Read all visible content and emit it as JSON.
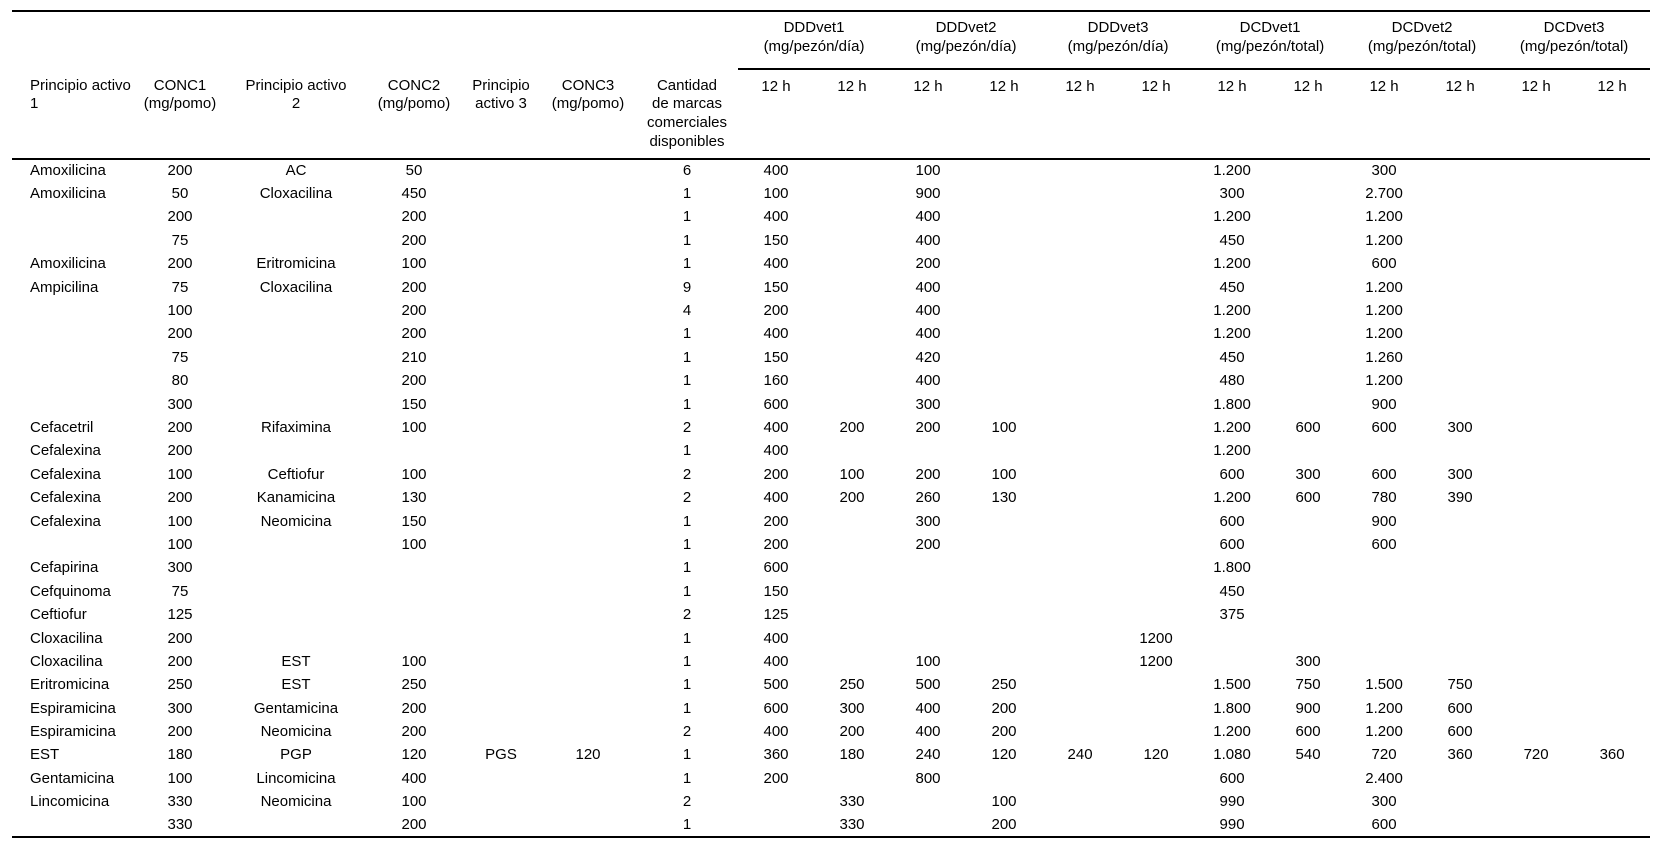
{
  "page": {
    "background": "#ffffff",
    "text_color": "#000000",
    "rule_color": "#000000"
  },
  "table": {
    "group_headers": [
      {
        "lines": [
          "DDDvet1",
          "(mg/pezón/día)"
        ]
      },
      {
        "lines": [
          "DDDvet2",
          "(mg/pezón/día)"
        ]
      },
      {
        "lines": [
          "DDDvet3",
          "(mg/pezón/día)"
        ]
      },
      {
        "lines": [
          "DCDvet1",
          "(mg/pezón/total)"
        ]
      },
      {
        "lines": [
          "DCDvet2",
          "(mg/pezón/total)"
        ]
      },
      {
        "lines": [
          "DCDvet3",
          "(mg/pezón/total)"
        ]
      }
    ],
    "col_headers": [
      {
        "lines": [
          "Principio activo",
          "1"
        ]
      },
      {
        "lines": [
          "CONC1",
          "(mg/pomo)"
        ]
      },
      {
        "lines": [
          "Principio activo",
          "2"
        ]
      },
      {
        "lines": [
          "CONC2",
          "(mg/pomo)"
        ]
      },
      {
        "lines": [
          "Principio",
          "activo 3"
        ]
      },
      {
        "lines": [
          "CONC3",
          "(mg/pomo)"
        ]
      },
      {
        "lines": [
          "Cantidad",
          "de marcas",
          "comerciales",
          "disponibles"
        ]
      }
    ],
    "subheader_12h": "12 h",
    "rows": [
      [
        "Amoxilicina",
        "200",
        "AC",
        "50",
        "",
        "",
        "6",
        "400",
        "",
        "100",
        "",
        "",
        "",
        "1.200",
        "",
        "300",
        "",
        "",
        ""
      ],
      [
        "Amoxilicina",
        "50",
        "Cloxacilina",
        "450",
        "",
        "",
        "1",
        "100",
        "",
        "900",
        "",
        "",
        "",
        "300",
        "",
        "2.700",
        "",
        "",
        ""
      ],
      [
        "",
        "200",
        "",
        "200",
        "",
        "",
        "1",
        "400",
        "",
        "400",
        "",
        "",
        "",
        "1.200",
        "",
        "1.200",
        "",
        "",
        ""
      ],
      [
        "",
        "75",
        "",
        "200",
        "",
        "",
        "1",
        "150",
        "",
        "400",
        "",
        "",
        "",
        "450",
        "",
        "1.200",
        "",
        "",
        ""
      ],
      [
        "Amoxilicina",
        "200",
        "Eritromicina",
        "100",
        "",
        "",
        "1",
        "400",
        "",
        "200",
        "",
        "",
        "",
        "1.200",
        "",
        "600",
        "",
        "",
        ""
      ],
      [
        "Ampicilina",
        "75",
        "Cloxacilina",
        "200",
        "",
        "",
        "9",
        "150",
        "",
        "400",
        "",
        "",
        "",
        "450",
        "",
        "1.200",
        "",
        "",
        ""
      ],
      [
        "",
        "100",
        "",
        "200",
        "",
        "",
        "4",
        "200",
        "",
        "400",
        "",
        "",
        "",
        "1.200",
        "",
        "1.200",
        "",
        "",
        ""
      ],
      [
        "",
        "200",
        "",
        "200",
        "",
        "",
        "1",
        "400",
        "",
        "400",
        "",
        "",
        "",
        "1.200",
        "",
        "1.200",
        "",
        "",
        ""
      ],
      [
        "",
        "75",
        "",
        "210",
        "",
        "",
        "1",
        "150",
        "",
        "420",
        "",
        "",
        "",
        "450",
        "",
        "1.260",
        "",
        "",
        ""
      ],
      [
        "",
        "80",
        "",
        "200",
        "",
        "",
        "1",
        "160",
        "",
        "400",
        "",
        "",
        "",
        "480",
        "",
        "1.200",
        "",
        "",
        ""
      ],
      [
        "",
        "300",
        "",
        "150",
        "",
        "",
        "1",
        "600",
        "",
        "300",
        "",
        "",
        "",
        "1.800",
        "",
        "900",
        "",
        "",
        ""
      ],
      [
        "Cefacetril",
        "200",
        "Rifaximina",
        "100",
        "",
        "",
        "2",
        "400",
        "200",
        "200",
        "100",
        "",
        "",
        "1.200",
        "600",
        "600",
        "300",
        "",
        ""
      ],
      [
        "Cefalexina",
        "200",
        "",
        "",
        "",
        "",
        "1",
        "400",
        "",
        "",
        "",
        "",
        "",
        "1.200",
        "",
        "",
        "",
        "",
        ""
      ],
      [
        "Cefalexina",
        "100",
        "Ceftiofur",
        "100",
        "",
        "",
        "2",
        "200",
        "100",
        "200",
        "100",
        "",
        "",
        "600",
        "300",
        "600",
        "300",
        "",
        ""
      ],
      [
        "Cefalexina",
        "200",
        "Kanamicina",
        "130",
        "",
        "",
        "2",
        "400",
        "200",
        "260",
        "130",
        "",
        "",
        "1.200",
        "600",
        "780",
        "390",
        "",
        ""
      ],
      [
        "Cefalexina",
        "100",
        "Neomicina",
        "150",
        "",
        "",
        "1",
        "200",
        "",
        "300",
        "",
        "",
        "",
        "600",
        "",
        "900",
        "",
        "",
        ""
      ],
      [
        "",
        "100",
        "",
        "100",
        "",
        "",
        "1",
        "200",
        "",
        "200",
        "",
        "",
        "",
        "600",
        "",
        "600",
        "",
        "",
        ""
      ],
      [
        "Cefapirina",
        "300",
        "",
        "",
        "",
        "",
        "1",
        "600",
        "",
        "",
        "",
        "",
        "",
        "1.800",
        "",
        "",
        "",
        "",
        ""
      ],
      [
        "Cefquinoma",
        "75",
        "",
        "",
        "",
        "",
        "1",
        "150",
        "",
        "",
        "",
        "",
        "",
        "450",
        "",
        "",
        "",
        "",
        ""
      ],
      [
        "Ceftiofur",
        "125",
        "",
        "",
        "",
        "",
        "2",
        "125",
        "",
        "",
        "",
        "",
        "",
        "375",
        "",
        "",
        "",
        "",
        ""
      ],
      [
        "Cloxacilina",
        "200",
        "",
        "",
        "",
        "",
        "1",
        "400",
        "",
        "",
        "",
        "",
        "1200",
        "",
        "",
        "",
        "",
        "",
        ""
      ],
      [
        "Cloxacilina",
        "200",
        "EST",
        "100",
        "",
        "",
        "1",
        "400",
        "",
        "100",
        "",
        "",
        "1200",
        "",
        "300",
        "",
        "",
        "",
        ""
      ],
      [
        "Eritromicina",
        "250",
        "EST",
        "250",
        "",
        "",
        "1",
        "500",
        "250",
        "500",
        "250",
        "",
        "",
        "1.500",
        "750",
        "1.500",
        "750",
        "",
        ""
      ],
      [
        "Espiramicina",
        "300",
        "Gentamicina",
        "200",
        "",
        "",
        "1",
        "600",
        "300",
        "400",
        "200",
        "",
        "",
        "1.800",
        "900",
        "1.200",
        "600",
        "",
        ""
      ],
      [
        "Espiramicina",
        "200",
        "Neomicina",
        "200",
        "",
        "",
        "2",
        "400",
        "200",
        "400",
        "200",
        "",
        "",
        "1.200",
        "600",
        "1.200",
        "600",
        "",
        ""
      ],
      [
        "EST",
        "180",
        "PGP",
        "120",
        "PGS",
        "120",
        "1",
        "360",
        "180",
        "240",
        "120",
        "240",
        "120",
        "1.080",
        "540",
        "720",
        "360",
        "720",
        "360"
      ],
      [
        "Gentamicina",
        "100",
        "Lincomicina",
        "400",
        "",
        "",
        "1",
        "200",
        "",
        "800",
        "",
        "",
        "",
        "600",
        "",
        "2.400",
        "",
        "",
        ""
      ],
      [
        "Lincomicina",
        "330",
        "Neomicina",
        "100",
        "",
        "",
        "2",
        "",
        "330",
        "",
        "100",
        "",
        "",
        "990",
        "",
        "300",
        "",
        "",
        ""
      ],
      [
        "",
        "330",
        "",
        "200",
        "",
        "",
        "1",
        "",
        "330",
        "",
        "200",
        "",
        "",
        "990",
        "",
        "600",
        "",
        "",
        ""
      ]
    ]
  }
}
